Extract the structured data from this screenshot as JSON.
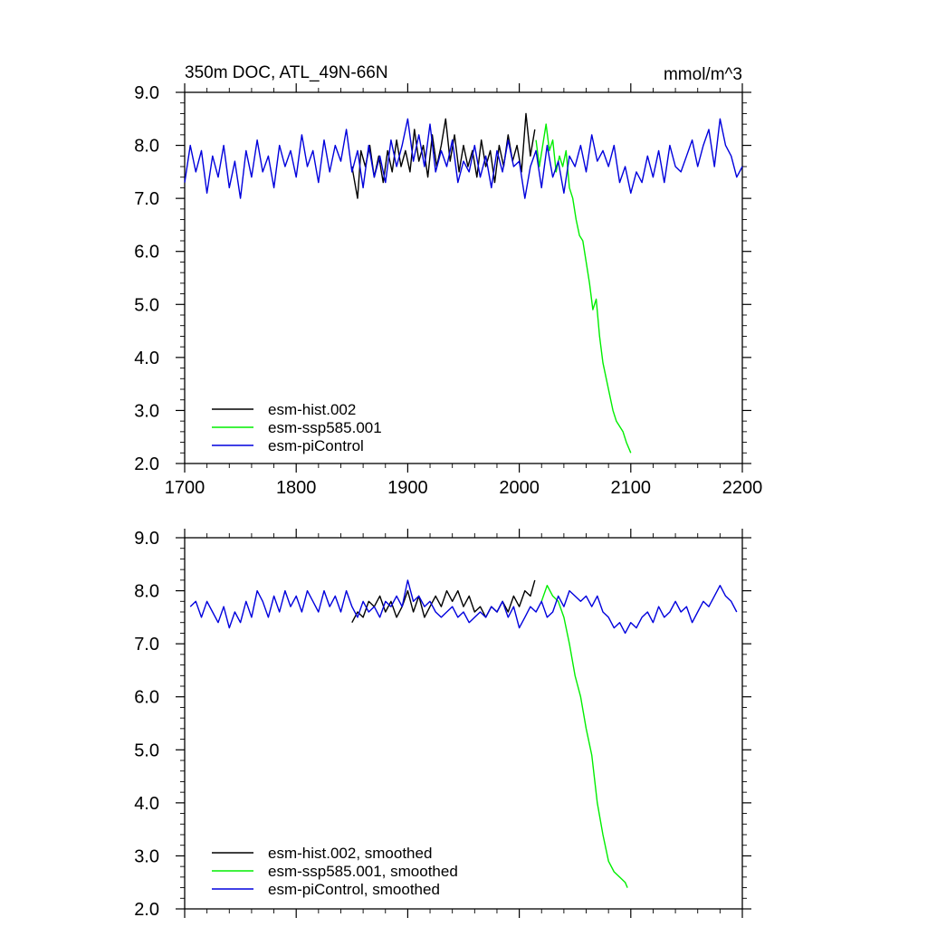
{
  "chart_data": [
    {
      "type": "line",
      "title": "350m DOC, ATL_49N-66N",
      "units": "mmol/m^3",
      "xlim": [
        1700,
        2200
      ],
      "ylim": [
        2.0,
        9.0
      ],
      "xticks": [
        1700,
        1800,
        1900,
        2000,
        2100,
        2200
      ],
      "xtick_labels": [
        "1700",
        "1800",
        "1900",
        "2000",
        "2100",
        "2200"
      ],
      "yticks": [
        2.0,
        3.0,
        4.0,
        5.0,
        6.0,
        7.0,
        8.0,
        9.0
      ],
      "ytick_labels": [
        "2.0",
        "3.0",
        "4.0",
        "5.0",
        "6.0",
        "7.0",
        "8.0",
        "9.0"
      ],
      "grid": false,
      "legend": "bottom-left",
      "series": [
        {
          "name": "esm-hist.002",
          "color": "#000000",
          "x": [
            1850,
            1855,
            1858,
            1862,
            1866,
            1870,
            1874,
            1878,
            1882,
            1886,
            1890,
            1894,
            1898,
            1902,
            1906,
            1910,
            1914,
            1918,
            1922,
            1926,
            1930,
            1934,
            1938,
            1942,
            1946,
            1950,
            1954,
            1958,
            1962,
            1966,
            1970,
            1974,
            1978,
            1982,
            1986,
            1990,
            1994,
            1998,
            2002,
            2006,
            2010,
            2014
          ],
          "y": [
            7.6,
            7.0,
            7.9,
            7.6,
            8.0,
            7.4,
            7.8,
            7.3,
            7.9,
            7.5,
            8.1,
            7.6,
            7.9,
            7.5,
            8.3,
            7.7,
            8.0,
            7.4,
            8.2,
            7.6,
            8.0,
            8.5,
            7.7,
            8.2,
            7.5,
            8.0,
            7.6,
            7.9,
            7.4,
            8.1,
            7.6,
            7.9,
            7.3,
            8.0,
            7.6,
            8.2,
            7.7,
            8.0,
            7.5,
            8.6,
            7.8,
            8.3
          ]
        },
        {
          "name": "esm-ssp585.001",
          "color": "#00ee00",
          "x": [
            2015,
            2018,
            2021,
            2024,
            2027,
            2030,
            2033,
            2036,
            2039,
            2042,
            2045,
            2048,
            2051,
            2054,
            2057,
            2060,
            2063,
            2066,
            2069,
            2072,
            2075,
            2078,
            2081,
            2084,
            2087,
            2090,
            2093,
            2096,
            2100
          ],
          "y": [
            8.1,
            7.6,
            8.0,
            8.4,
            7.9,
            8.1,
            7.5,
            7.8,
            7.6,
            7.9,
            7.2,
            7.0,
            6.6,
            6.3,
            6.2,
            5.8,
            5.4,
            4.9,
            5.1,
            4.4,
            3.9,
            3.6,
            3.3,
            3.0,
            2.8,
            2.7,
            2.6,
            2.4,
            2.2
          ]
        },
        {
          "name": "esm-piControl",
          "color": "#0000dd",
          "x": [
            1700,
            1705,
            1710,
            1715,
            1720,
            1725,
            1730,
            1735,
            1740,
            1745,
            1750,
            1755,
            1760,
            1765,
            1770,
            1775,
            1780,
            1785,
            1790,
            1795,
            1800,
            1805,
            1810,
            1815,
            1820,
            1825,
            1830,
            1835,
            1840,
            1845,
            1850,
            1855,
            1860,
            1865,
            1870,
            1875,
            1880,
            1885,
            1890,
            1895,
            1900,
            1905,
            1910,
            1915,
            1920,
            1925,
            1930,
            1935,
            1940,
            1945,
            1950,
            1955,
            1960,
            1965,
            1970,
            1975,
            1980,
            1985,
            1990,
            1995,
            2000,
            2005,
            2010,
            2015,
            2020,
            2025,
            2030,
            2035,
            2040,
            2045,
            2050,
            2055,
            2060,
            2065,
            2070,
            2075,
            2080,
            2085,
            2090,
            2095,
            2100,
            2105,
            2110,
            2115,
            2120,
            2125,
            2130,
            2135,
            2140,
            2145,
            2150,
            2155,
            2160,
            2165,
            2170,
            2175,
            2180,
            2185,
            2190,
            2195,
            2200
          ],
          "y": [
            7.3,
            8.0,
            7.5,
            7.9,
            7.1,
            7.8,
            7.4,
            8.0,
            7.2,
            7.7,
            7.0,
            7.9,
            7.4,
            8.1,
            7.5,
            7.8,
            7.2,
            8.0,
            7.6,
            7.9,
            7.4,
            8.2,
            7.6,
            7.9,
            7.3,
            8.1,
            7.5,
            8.0,
            7.7,
            8.3,
            7.5,
            7.9,
            7.2,
            8.0,
            7.4,
            7.8,
            7.3,
            8.1,
            7.6,
            8.0,
            8.5,
            7.7,
            8.2,
            7.6,
            8.4,
            7.5,
            7.9,
            7.6,
            8.1,
            7.3,
            7.7,
            7.5,
            8.0,
            7.4,
            7.8,
            7.2,
            7.9,
            7.5,
            8.1,
            7.6,
            7.7,
            7.0,
            7.6,
            7.9,
            7.2,
            8.0,
            7.4,
            7.7,
            7.1,
            7.8,
            7.6,
            8.0,
            7.5,
            8.2,
            7.7,
            7.9,
            7.6,
            8.0,
            7.3,
            7.6,
            7.1,
            7.5,
            7.3,
            7.8,
            7.4,
            7.9,
            7.3,
            8.0,
            7.6,
            7.5,
            7.8,
            8.1,
            7.6,
            8.0,
            8.3,
            7.6,
            8.5,
            8.0,
            7.8,
            7.4,
            7.6
          ]
        }
      ]
    },
    {
      "type": "line",
      "title": "",
      "units": "",
      "xlim": [
        1700,
        2200
      ],
      "ylim": [
        2.0,
        9.0
      ],
      "xticks": [
        1700,
        1800,
        1900,
        2000,
        2100,
        2200
      ],
      "xtick_labels": [],
      "yticks": [
        2.0,
        3.0,
        4.0,
        5.0,
        6.0,
        7.0,
        8.0,
        9.0
      ],
      "ytick_labels": [
        "2.0",
        "3.0",
        "4.0",
        "5.0",
        "6.0",
        "7.0",
        "8.0",
        "9.0"
      ],
      "grid": false,
      "legend": "bottom-left",
      "series": [
        {
          "name": "esm-hist.002, smoothed",
          "color": "#000000",
          "x": [
            1850,
            1855,
            1860,
            1865,
            1870,
            1875,
            1880,
            1885,
            1890,
            1895,
            1900,
            1905,
            1910,
            1915,
            1920,
            1925,
            1930,
            1935,
            1940,
            1945,
            1950,
            1955,
            1960,
            1965,
            1970,
            1975,
            1980,
            1985,
            1990,
            1995,
            2000,
            2005,
            2010,
            2014
          ],
          "y": [
            7.4,
            7.6,
            7.5,
            7.8,
            7.7,
            7.9,
            7.6,
            7.8,
            7.5,
            7.7,
            8.0,
            7.6,
            7.9,
            7.5,
            7.7,
            7.9,
            7.7,
            8.0,
            7.8,
            8.0,
            7.7,
            7.9,
            7.6,
            7.7,
            7.5,
            7.7,
            7.6,
            7.8,
            7.6,
            7.9,
            7.7,
            8.0,
            7.9,
            8.2
          ]
        },
        {
          "name": "esm-ssp585.001, smoothed",
          "color": "#00ee00",
          "x": [
            2020,
            2025,
            2030,
            2035,
            2040,
            2045,
            2050,
            2055,
            2060,
            2065,
            2070,
            2075,
            2080,
            2085,
            2090,
            2095,
            2097
          ],
          "y": [
            7.8,
            8.1,
            7.9,
            7.8,
            7.5,
            7.0,
            6.4,
            6.0,
            5.4,
            4.9,
            4.0,
            3.4,
            2.9,
            2.7,
            2.6,
            2.5,
            2.4
          ]
        },
        {
          "name": "esm-piControl, smoothed",
          "color": "#0000dd",
          "x": [
            1705,
            1710,
            1715,
            1720,
            1725,
            1730,
            1735,
            1740,
            1745,
            1750,
            1755,
            1760,
            1765,
            1770,
            1775,
            1780,
            1785,
            1790,
            1795,
            1800,
            1805,
            1810,
            1815,
            1820,
            1825,
            1830,
            1835,
            1840,
            1845,
            1850,
            1855,
            1860,
            1865,
            1870,
            1875,
            1880,
            1885,
            1890,
            1895,
            1900,
            1905,
            1910,
            1915,
            1920,
            1925,
            1930,
            1935,
            1940,
            1945,
            1950,
            1955,
            1960,
            1965,
            1970,
            1975,
            1980,
            1985,
            1990,
            1995,
            2000,
            2005,
            2010,
            2015,
            2020,
            2025,
            2030,
            2035,
            2040,
            2045,
            2050,
            2055,
            2060,
            2065,
            2070,
            2075,
            2080,
            2085,
            2090,
            2095,
            2100,
            2105,
            2110,
            2115,
            2120,
            2125,
            2130,
            2135,
            2140,
            2145,
            2150,
            2155,
            2160,
            2165,
            2170,
            2175,
            2180,
            2185,
            2190,
            2195
          ],
          "y": [
            7.7,
            7.8,
            7.5,
            7.8,
            7.6,
            7.4,
            7.7,
            7.3,
            7.6,
            7.4,
            7.8,
            7.5,
            8.0,
            7.8,
            7.5,
            7.9,
            7.6,
            8.0,
            7.7,
            7.9,
            7.6,
            8.0,
            7.8,
            7.6,
            8.0,
            7.7,
            7.9,
            7.6,
            8.0,
            7.7,
            7.5,
            7.8,
            7.6,
            7.7,
            7.5,
            7.8,
            7.7,
            7.9,
            7.7,
            8.2,
            7.8,
            7.9,
            7.7,
            7.8,
            7.6,
            7.5,
            7.6,
            7.7,
            7.5,
            7.6,
            7.4,
            7.5,
            7.6,
            7.5,
            7.7,
            7.6,
            7.8,
            7.5,
            7.7,
            7.3,
            7.5,
            7.7,
            7.6,
            7.8,
            7.5,
            7.6,
            7.9,
            7.7,
            8.0,
            7.9,
            7.8,
            7.9,
            7.7,
            7.9,
            7.6,
            7.5,
            7.3,
            7.4,
            7.2,
            7.4,
            7.3,
            7.5,
            7.6,
            7.4,
            7.7,
            7.5,
            7.6,
            7.8,
            7.6,
            7.7,
            7.4,
            7.6,
            7.8,
            7.7,
            7.9,
            8.1,
            7.9,
            7.8,
            7.6
          ]
        }
      ]
    }
  ]
}
